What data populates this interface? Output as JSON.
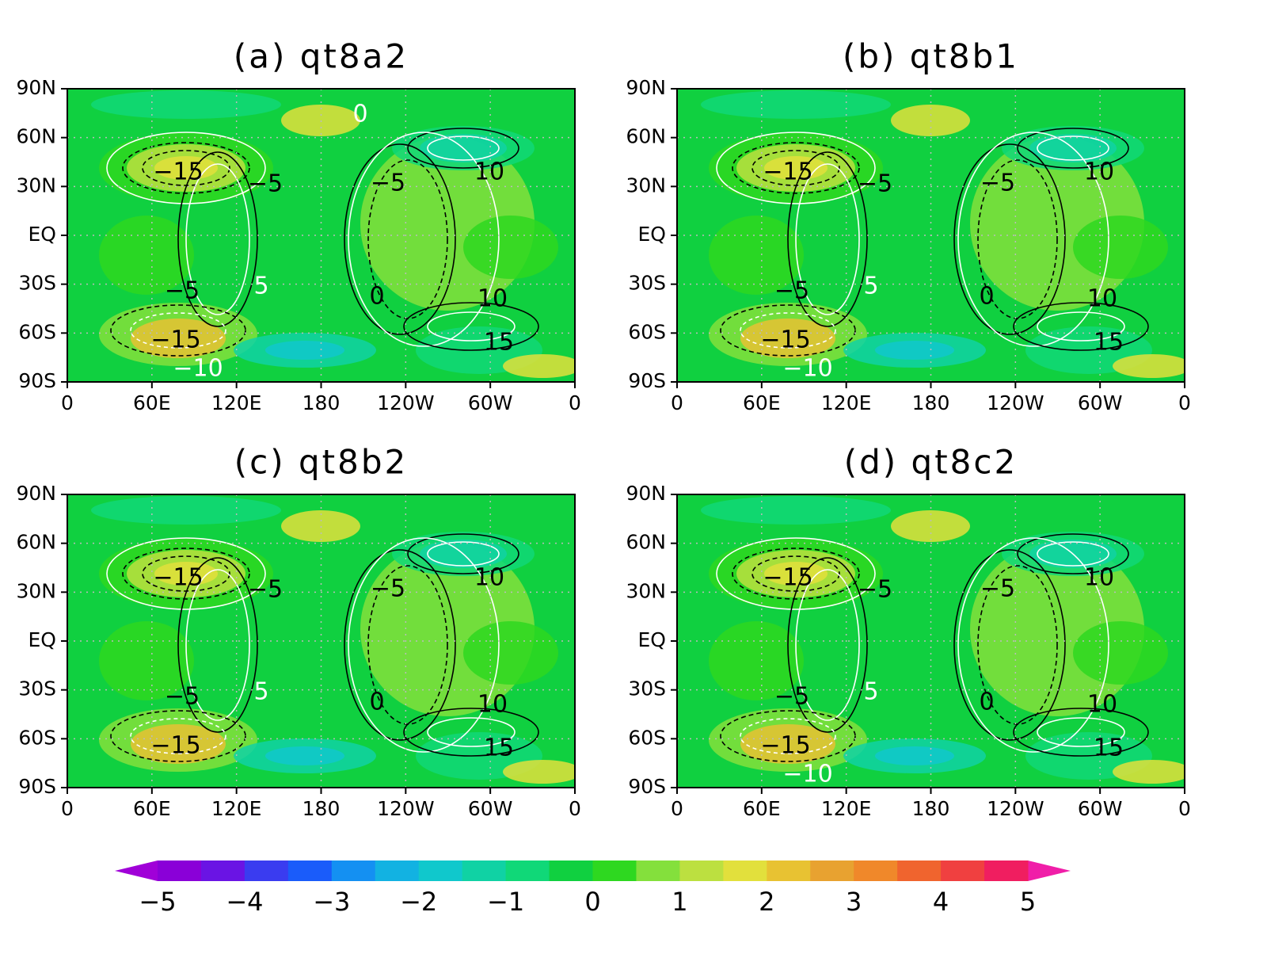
{
  "chart_data": [
    {
      "type": "contour",
      "title": "(a) qt8a2",
      "xlim": [
        0,
        360
      ],
      "xticks": [
        0,
        {
          "value": 60,
          "label": "60E"
        },
        {
          "value": 120,
          "label": "120E"
        },
        180,
        {
          "value": 240,
          "label": "120W"
        },
        {
          "value": 300,
          "label": "60W"
        },
        {
          "value": 360,
          "label": "0"
        }
      ],
      "ylim": [
        -90,
        90
      ],
      "yticks": [
        {
          "value": -90,
          "label": "90S"
        },
        {
          "value": -60,
          "label": "60S"
        },
        {
          "value": -30,
          "label": "30S"
        },
        {
          "value": 0,
          "label": "EQ"
        },
        {
          "value": 30,
          "label": "30N"
        },
        {
          "value": 60,
          "label": "60N"
        },
        {
          "value": 90,
          "label": "90N"
        }
      ],
      "grid": true,
      "annotations": [
        "−15",
        "−5",
        "−5",
        "10",
        "−5",
        "5",
        "0",
        "10",
        "−15",
        "15",
        "−10",
        "0"
      ]
    },
    {
      "type": "contour",
      "title": "(b) qt8b1",
      "xlim": [
        0,
        360
      ],
      "xticks": [
        0,
        {
          "value": 60,
          "label": "60E"
        },
        {
          "value": 120,
          "label": "120E"
        },
        180,
        {
          "value": 240,
          "label": "120W"
        },
        {
          "value": 300,
          "label": "60W"
        },
        {
          "value": 360,
          "label": "0"
        }
      ],
      "ylim": [
        -90,
        90
      ],
      "yticks": [
        {
          "value": -90,
          "label": "90S"
        },
        {
          "value": -60,
          "label": "60S"
        },
        {
          "value": -30,
          "label": "30S"
        },
        {
          "value": 0,
          "label": "EQ"
        },
        {
          "value": 30,
          "label": "30N"
        },
        {
          "value": 60,
          "label": "60N"
        },
        {
          "value": 90,
          "label": "90N"
        }
      ],
      "grid": true,
      "annotations": [
        "−15",
        "−5",
        "−5",
        "10",
        "−5",
        "5",
        "0",
        "10",
        "−15",
        "15",
        "−10"
      ]
    },
    {
      "type": "contour",
      "title": "(c) qt8b2",
      "xlim": [
        0,
        360
      ],
      "xticks": [
        0,
        {
          "value": 60,
          "label": "60E"
        },
        {
          "value": 120,
          "label": "120E"
        },
        180,
        {
          "value": 240,
          "label": "120W"
        },
        {
          "value": 300,
          "label": "60W"
        },
        {
          "value": 360,
          "label": "0"
        }
      ],
      "ylim": [
        -90,
        90
      ],
      "yticks": [
        {
          "value": -90,
          "label": "90S"
        },
        {
          "value": -60,
          "label": "60S"
        },
        {
          "value": -30,
          "label": "30S"
        },
        {
          "value": 0,
          "label": "EQ"
        },
        {
          "value": 30,
          "label": "30N"
        },
        {
          "value": 60,
          "label": "60N"
        },
        {
          "value": 90,
          "label": "90N"
        }
      ],
      "grid": true,
      "annotations": [
        "−15",
        "−5",
        "−5",
        "10",
        "−5",
        "5",
        "0",
        "10",
        "−15",
        "15"
      ]
    },
    {
      "type": "contour",
      "title": "(d) qt8c2",
      "xlim": [
        0,
        360
      ],
      "xticks": [
        0,
        {
          "value": 60,
          "label": "60E"
        },
        {
          "value": 120,
          "label": "120E"
        },
        180,
        {
          "value": 240,
          "label": "120W"
        },
        {
          "value": 300,
          "label": "60W"
        },
        {
          "value": 360,
          "label": "0"
        }
      ],
      "ylim": [
        -90,
        90
      ],
      "yticks": [
        {
          "value": -90,
          "label": "90S"
        },
        {
          "value": -60,
          "label": "60S"
        },
        {
          "value": -30,
          "label": "30S"
        },
        {
          "value": 0,
          "label": "EQ"
        },
        {
          "value": 30,
          "label": "30N"
        },
        {
          "value": 60,
          "label": "60N"
        },
        {
          "value": 90,
          "label": "90N"
        }
      ],
      "grid": true,
      "annotations": [
        "−15",
        "−5",
        "−5",
        "10",
        "−5",
        "5",
        "0",
        "10",
        "−15",
        "15",
        "−10"
      ]
    }
  ],
  "colorbar": {
    "lim": [
      -5,
      5
    ],
    "ticks": [
      {
        "value": -5,
        "label": "−5"
      },
      {
        "value": -4,
        "label": "−4"
      },
      {
        "value": -3,
        "label": "−3"
      },
      {
        "value": -2,
        "label": "−2"
      },
      {
        "value": -1,
        "label": "−1"
      },
      0,
      1,
      2,
      3,
      4,
      5
    ],
    "colors": [
      "#8a00d8",
      "#6a14e4",
      "#3a3cf0",
      "#1a5cfa",
      "#1490f2",
      "#12b2e2",
      "#10c8cc",
      "#10d2a4",
      "#10d878",
      "#10d040",
      "#2ed820",
      "#84e03c",
      "#bce040",
      "#e2e03c",
      "#e8c232",
      "#e8a230",
      "#f0882a",
      "#f0642e",
      "#f04040",
      "#f01e60"
    ],
    "under_color": "#a000d8",
    "over_color": "#f01ea8"
  }
}
